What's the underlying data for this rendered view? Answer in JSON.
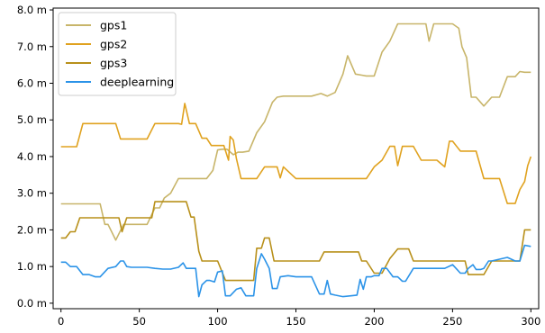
{
  "chart_data": {
    "type": "line",
    "title": "",
    "xlabel": "",
    "ylabel": "",
    "xlim": [
      -5,
      305
    ],
    "ylim": [
      -0.15,
      8.05
    ],
    "xticks": [
      0,
      50,
      100,
      150,
      200,
      250,
      300
    ],
    "xtick_labels": [
      "0",
      "50",
      "100",
      "150",
      "200",
      "250",
      "300"
    ],
    "yticks": [
      0,
      1,
      2,
      3,
      4,
      5,
      6,
      7,
      8
    ],
    "ytick_labels": [
      "0.0 m",
      "1.0 m",
      "2.0 m",
      "3.0 m",
      "4.0 m",
      "5.0 m",
      "6.0 m",
      "7.0 m",
      "8.0 m"
    ],
    "grid": false,
    "legend_position": "upper-left",
    "series": [
      {
        "name": "gps1",
        "color": "#c8b56a",
        "x": [
          0,
          8,
          15,
          20,
          25,
          28,
          30,
          35,
          40,
          45,
          50,
          55,
          60,
          63,
          66,
          70,
          75,
          80,
          85,
          88,
          93,
          97,
          100,
          103,
          106,
          110,
          113,
          116,
          120,
          125,
          130,
          135,
          138,
          142,
          145,
          150,
          160,
          166,
          170,
          175,
          180,
          183,
          188,
          192,
          195,
          200,
          205,
          210,
          215,
          218,
          220,
          225,
          230,
          233,
          235,
          238,
          240,
          245,
          250,
          254,
          256,
          259,
          262,
          265,
          270,
          275,
          280,
          285,
          290,
          293,
          296,
          300
        ],
        "y": [
          2.71,
          2.71,
          2.71,
          2.71,
          2.71,
          2.15,
          2.15,
          1.72,
          2.15,
          2.15,
          2.15,
          2.15,
          2.6,
          2.6,
          2.87,
          3.0,
          3.4,
          3.4,
          3.4,
          3.4,
          3.4,
          3.62,
          4.18,
          4.2,
          4.2,
          4.05,
          4.12,
          4.12,
          4.15,
          4.65,
          4.95,
          5.48,
          5.62,
          5.65,
          5.65,
          5.65,
          5.65,
          5.72,
          5.65,
          5.75,
          6.25,
          6.75,
          6.25,
          6.22,
          6.2,
          6.2,
          6.85,
          7.15,
          7.62,
          7.62,
          7.62,
          7.62,
          7.62,
          7.62,
          7.15,
          7.62,
          7.62,
          7.62,
          7.62,
          7.5,
          7.0,
          6.7,
          5.62,
          5.62,
          5.38,
          5.62,
          5.62,
          6.18,
          6.18,
          6.32,
          6.3,
          6.3
        ]
      },
      {
        "name": "gps2",
        "color": "#e0a21f",
        "x": [
          0,
          5,
          10,
          14,
          20,
          25,
          30,
          35,
          38,
          42,
          46,
          50,
          55,
          60,
          65,
          70,
          75,
          77,
          79,
          82,
          86,
          90,
          93,
          96,
          100,
          104,
          107,
          108,
          110,
          112,
          115,
          118,
          120,
          125,
          130,
          133,
          138,
          140,
          142,
          150,
          160,
          165,
          170,
          175,
          180,
          185,
          190,
          195,
          200,
          205,
          210,
          213,
          215,
          218,
          220,
          225,
          230,
          235,
          240,
          245,
          248,
          250,
          255,
          260,
          265,
          270,
          275,
          280,
          285,
          290,
          293,
          296,
          298,
          300
        ],
        "y": [
          4.27,
          4.27,
          4.27,
          4.9,
          4.9,
          4.9,
          4.9,
          4.9,
          4.48,
          4.48,
          4.48,
          4.48,
          4.48,
          4.9,
          4.9,
          4.9,
          4.9,
          4.88,
          5.45,
          4.9,
          4.9,
          4.5,
          4.5,
          4.3,
          4.3,
          4.3,
          3.9,
          4.55,
          4.45,
          3.95,
          3.4,
          3.4,
          3.4,
          3.4,
          3.72,
          3.72,
          3.72,
          3.42,
          3.72,
          3.4,
          3.4,
          3.4,
          3.4,
          3.4,
          3.4,
          3.4,
          3.4,
          3.4,
          3.72,
          3.9,
          4.28,
          4.28,
          3.75,
          4.28,
          4.28,
          4.28,
          3.9,
          3.9,
          3.9,
          3.72,
          4.42,
          4.42,
          4.15,
          4.15,
          4.15,
          3.4,
          3.4,
          3.4,
          2.72,
          2.72,
          3.1,
          3.32,
          3.75,
          4.0
        ]
      },
      {
        "name": "gps3",
        "color": "#b8901a",
        "x": [
          0,
          3,
          6,
          9,
          12,
          15,
          20,
          25,
          30,
          35,
          37,
          39,
          42,
          45,
          50,
          55,
          58,
          60,
          63,
          65,
          70,
          75,
          80,
          83,
          85,
          88,
          90,
          95,
          100,
          105,
          108,
          110,
          115,
          120,
          123,
          125,
          128,
          130,
          133,
          136,
          140,
          145,
          150,
          155,
          160,
          165,
          168,
          170,
          175,
          180,
          185,
          190,
          192,
          195,
          200,
          205,
          210,
          215,
          218,
          222,
          225,
          230,
          235,
          240,
          245,
          250,
          255,
          258,
          260,
          265,
          270,
          275,
          280,
          285,
          290,
          293,
          296,
          300
        ],
        "y": [
          1.78,
          1.78,
          1.95,
          1.95,
          2.33,
          2.33,
          2.33,
          2.33,
          2.33,
          2.33,
          2.33,
          1.95,
          2.33,
          2.33,
          2.33,
          2.33,
          2.33,
          2.77,
          2.77,
          2.77,
          2.77,
          2.77,
          2.77,
          2.35,
          2.35,
          1.42,
          1.15,
          1.15,
          1.15,
          0.62,
          0.62,
          0.62,
          0.62,
          0.62,
          0.62,
          1.5,
          1.5,
          1.78,
          1.78,
          1.15,
          1.15,
          1.15,
          1.15,
          1.15,
          1.15,
          1.15,
          1.4,
          1.4,
          1.4,
          1.4,
          1.4,
          1.4,
          1.15,
          1.15,
          0.82,
          0.82,
          1.22,
          1.48,
          1.48,
          1.48,
          1.15,
          1.15,
          1.15,
          1.15,
          1.15,
          1.15,
          1.15,
          1.15,
          0.78,
          0.78,
          0.78,
          1.15,
          1.15,
          1.15,
          1.15,
          1.15,
          2.0,
          2.0
        ]
      },
      {
        "name": "deeplearning",
        "color": "#2b93e8",
        "x": [
          0,
          3,
          6,
          10,
          14,
          18,
          22,
          25,
          30,
          35,
          38,
          40,
          42,
          45,
          50,
          55,
          60,
          65,
          70,
          75,
          78,
          80,
          83,
          86,
          88,
          90,
          93,
          95,
          98,
          100,
          103,
          105,
          108,
          112,
          115,
          118,
          120,
          123,
          125,
          128,
          130,
          133,
          135,
          138,
          140,
          145,
          150,
          155,
          160,
          165,
          168,
          170,
          172,
          175,
          180,
          185,
          189,
          191,
          193,
          195,
          198,
          200,
          203,
          205,
          208,
          212,
          215,
          218,
          220,
          225,
          230,
          235,
          240,
          245,
          250,
          255,
          258,
          260,
          263,
          265,
          268,
          270,
          273,
          275,
          280,
          285,
          290,
          293,
          296,
          300
        ],
        "y": [
          1.12,
          1.12,
          1.0,
          1.0,
          0.78,
          0.78,
          0.72,
          0.72,
          0.95,
          1.0,
          1.15,
          1.15,
          1.0,
          0.98,
          0.98,
          0.98,
          0.95,
          0.93,
          0.93,
          0.98,
          1.1,
          0.95,
          0.95,
          0.95,
          0.18,
          0.5,
          0.62,
          0.62,
          0.58,
          0.85,
          0.88,
          0.2,
          0.2,
          0.38,
          0.42,
          0.2,
          0.2,
          0.2,
          0.95,
          1.35,
          1.2,
          0.95,
          0.4,
          0.4,
          0.72,
          0.75,
          0.72,
          0.72,
          0.72,
          0.25,
          0.25,
          0.62,
          0.25,
          0.22,
          0.18,
          0.2,
          0.22,
          0.65,
          0.38,
          0.72,
          0.72,
          0.75,
          0.75,
          0.95,
          0.95,
          0.72,
          0.72,
          0.6,
          0.6,
          0.95,
          0.95,
          0.95,
          0.95,
          0.95,
          1.05,
          0.82,
          0.82,
          0.95,
          1.05,
          0.92,
          0.92,
          0.95,
          1.15,
          1.15,
          1.2,
          1.25,
          1.15,
          1.15,
          1.58,
          1.55
        ]
      }
    ]
  }
}
